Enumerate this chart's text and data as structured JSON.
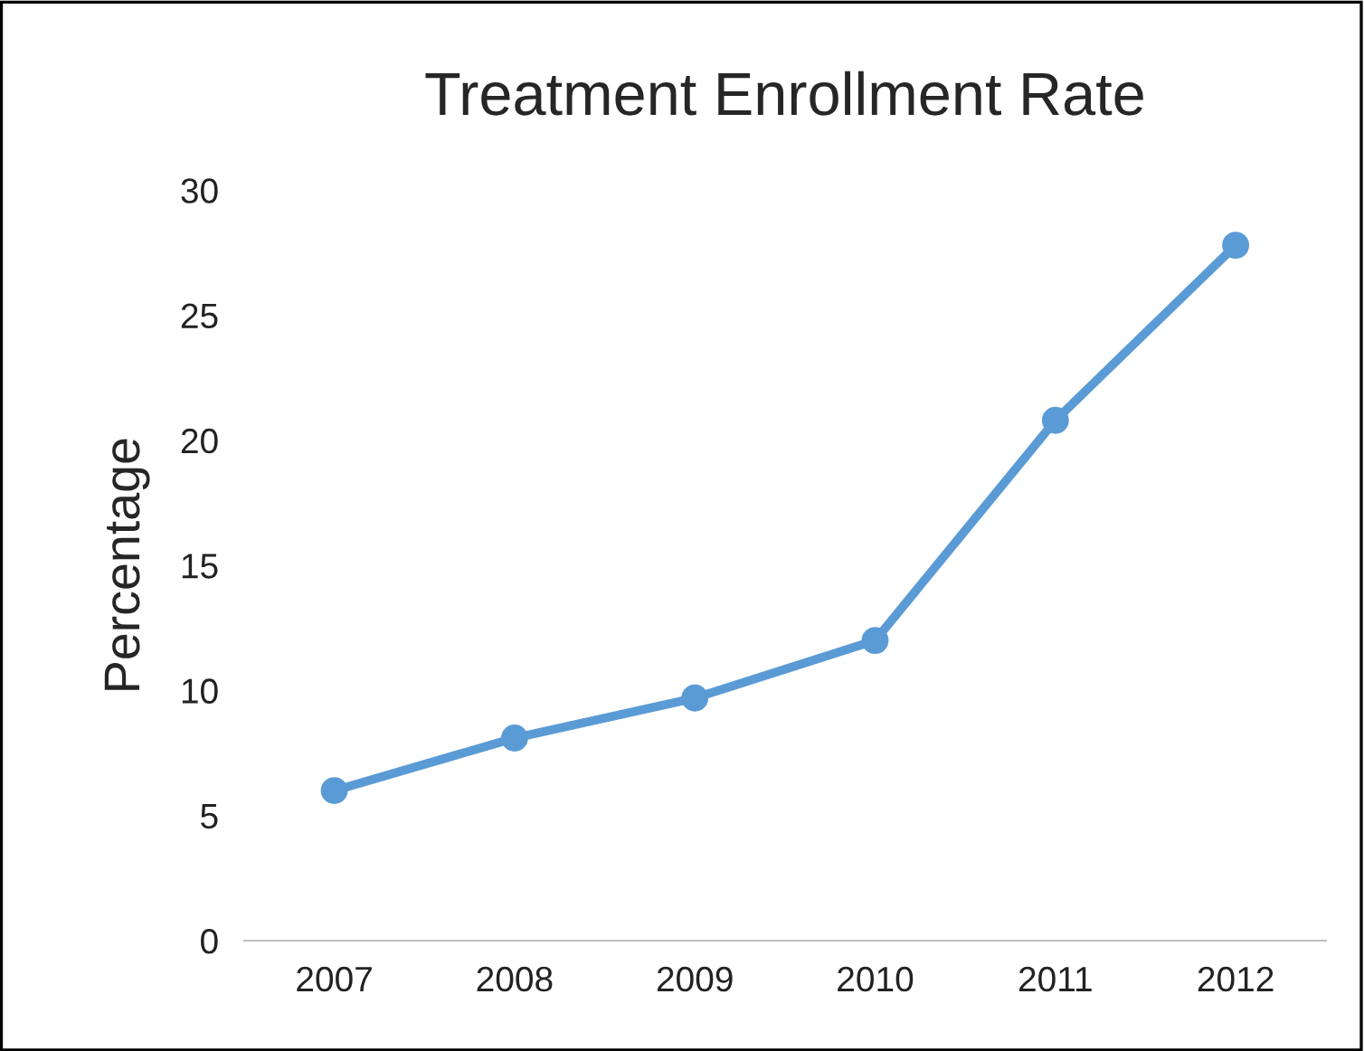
{
  "chart_data": {
    "type": "line",
    "title": "Treatment Enrollment Rate",
    "ylabel": "Percentage",
    "categories": [
      "2007",
      "2008",
      "2009",
      "2010",
      "2011",
      "2012"
    ],
    "series": [
      {
        "color": "#5b9bd5",
        "values": [
          6.0,
          8.1,
          9.7,
          12.0,
          20.8,
          27.8
        ]
      }
    ],
    "ylim": [
      0,
      30
    ],
    "yticks": [
      0,
      5,
      10,
      15,
      20,
      25,
      30
    ],
    "grid": false,
    "legend": false,
    "marker": "circle",
    "line_style": "solid"
  }
}
